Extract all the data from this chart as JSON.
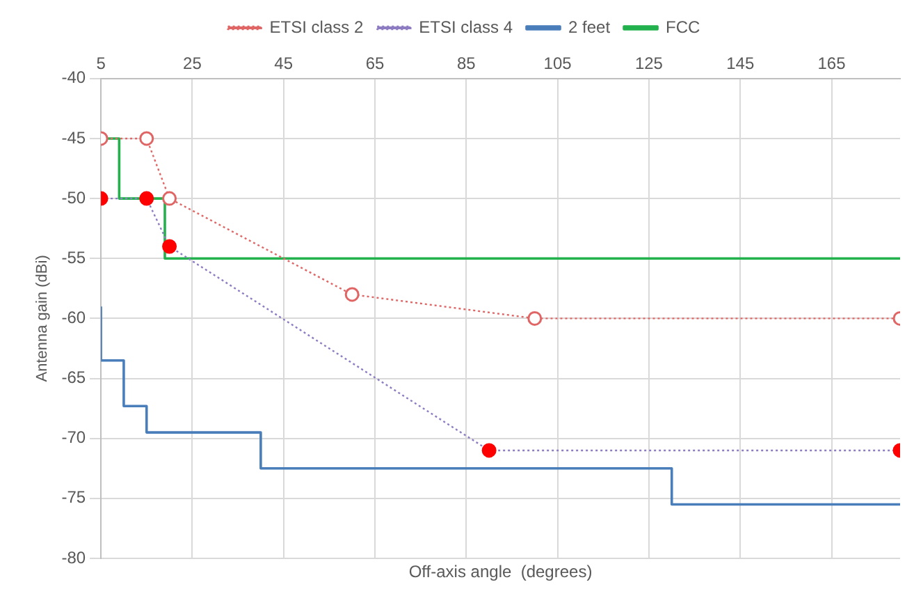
{
  "chart_data": {
    "type": "line",
    "xlabel": "Off-axis angle  (degrees)",
    "ylabel": "Antenna gain (dBi)",
    "xlim": [
      5,
      180
    ],
    "xticks": [
      5,
      25,
      45,
      65,
      85,
      105,
      125,
      145,
      165
    ],
    "ylim": [
      -80,
      -40
    ],
    "yticks": [
      -80,
      -75,
      -70,
      -65,
      -60,
      -55,
      -50,
      -45,
      -40
    ],
    "grid": true,
    "legend": "top",
    "series": [
      {
        "name": "ETSI class 2",
        "type": "line",
        "color": "#e06666",
        "marker": "circle",
        "line_style": "dotted",
        "x": [
          5,
          15,
          20,
          60,
          100,
          180
        ],
        "values": [
          -45,
          -45,
          -50,
          -58,
          -60,
          -60
        ]
      },
      {
        "name": "ETSI class 4",
        "type": "line",
        "color": "#8e7cc3",
        "colors": [
          "#ff0000",
          "#ff0000",
          "#ff0000",
          "#ff0000",
          "#ff0000"
        ],
        "marker": "circle",
        "line_style": "dotted",
        "x": [
          5,
          15,
          20,
          90,
          180
        ],
        "values": [
          -50,
          -50,
          -54,
          -71,
          -71
        ]
      },
      {
        "name": "2 feet",
        "type": "step",
        "color": "#4a7ebb",
        "marker": "none",
        "line_style": "solid",
        "x": [
          5,
          5,
          10,
          15,
          40,
          130,
          180
        ],
        "values": [
          -59,
          -63.5,
          -67.3,
          -69.5,
          -72.5,
          -75.5,
          -75.5
        ]
      },
      {
        "name": "FCC",
        "type": "step",
        "color": "#22b14c",
        "marker": "none",
        "line_style": "solid",
        "x": [
          5,
          9,
          19,
          180
        ],
        "values": [
          -45,
          -50,
          -55,
          -55
        ]
      }
    ]
  }
}
